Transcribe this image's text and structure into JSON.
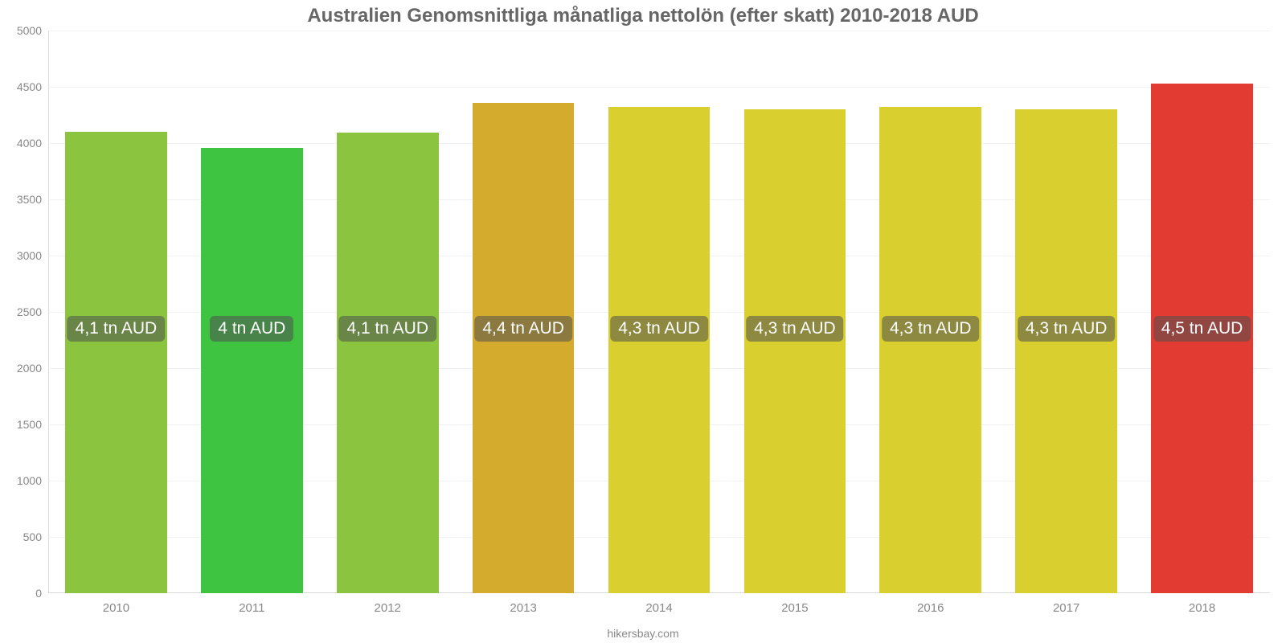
{
  "chart": {
    "type": "bar",
    "title": "Australien Genomsnittliga månatliga nettolön (efter skatt) 2010-2018 AUD",
    "title_fontsize": 24,
    "title_color": "#666666",
    "footer": "hikersbay.com",
    "footer_color": "#888888",
    "background_color": "#ffffff",
    "grid_color": "#f1f1f1",
    "axis_color": "#d9d9d9",
    "tick_label_color": "#888888",
    "tick_label_fontsize": 14,
    "x_tick_label_fontsize": 15,
    "ylim": [
      0,
      5000
    ],
    "ytick_step": 500,
    "yticks": [
      0,
      500,
      1000,
      1500,
      2000,
      2500,
      3000,
      3500,
      4000,
      4500,
      5000
    ],
    "bar_width_ratio": 0.75,
    "bar_label_bg": "rgba(80,80,80,0.55)",
    "bar_label_color": "#ffffff",
    "bar_label_fontsize": 21,
    "bar_label_y_value": 2350,
    "categories": [
      "2010",
      "2011",
      "2012",
      "2013",
      "2014",
      "2015",
      "2016",
      "2017",
      "2018"
    ],
    "values": [
      4100,
      3960,
      4090,
      4360,
      4320,
      4300,
      4320,
      4300,
      4530
    ],
    "value_labels": [
      "4,1 tn AUD",
      "4 tn AUD",
      "4,1 tn AUD",
      "4,4 tn AUD",
      "4,3 tn AUD",
      "4,3 tn AUD",
      "4,3 tn AUD",
      "4,3 tn AUD",
      "4,5 tn AUD"
    ],
    "bar_colors": [
      "#8bc53f",
      "#3fc441",
      "#8bc53f",
      "#d5ab2e",
      "#d9cf2f",
      "#d9cf2f",
      "#d9cf2f",
      "#d9cf2f",
      "#e23b32"
    ]
  }
}
